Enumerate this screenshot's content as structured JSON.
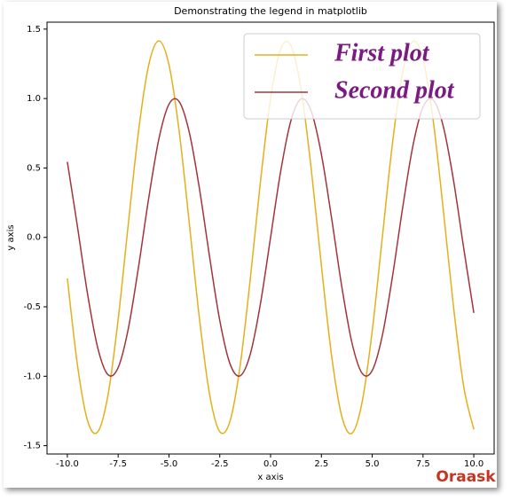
{
  "chart_data": {
    "type": "line",
    "title": "Demonstrating the legend in matplotlib",
    "xlabel": "x axis",
    "ylabel": "y axis",
    "x": [
      -10,
      -9.5,
      -9,
      -8.5,
      -8,
      -7.5,
      -7,
      -6.5,
      -6,
      -5.5,
      -5,
      -4.5,
      -4,
      -3.5,
      -3,
      -2.5,
      -2,
      -1.5,
      -1,
      -0.5,
      0,
      0.5,
      1,
      1.5,
      2,
      2.5,
      3,
      3.5,
      4,
      4.5,
      5,
      5.5,
      6,
      6.5,
      7,
      7.5,
      8,
      8.5,
      9,
      9.5,
      10
    ],
    "series": [
      {
        "name": "First plot",
        "color": "#e3b01c",
        "values": [
          -0.295,
          -0.922,
          -1.323,
          -1.4,
          -1.135,
          -0.591,
          0.097,
          0.762,
          1.239,
          1.415,
          1.243,
          0.767,
          0.103,
          -0.585,
          -1.131,
          -1.399,
          -1.325,
          -0.926,
          -0.301,
          0.399,
          1,
          1.357,
          1.381,
          1.068,
          0.493,
          -0.203,
          -0.849,
          -1.287,
          -1.411,
          -1.189,
          -0.675,
          0.003,
          0.681,
          1.192,
          1.411,
          1.285,
          0.843,
          0.196,
          -0.499,
          -1.072,
          -1.383
        ]
      },
      {
        "name": "Second plot",
        "color": "#a3343c",
        "values": [
          0.544,
          0.075,
          -0.412,
          -0.798,
          -0.989,
          -0.938,
          -0.657,
          -0.215,
          0.279,
          0.706,
          0.959,
          0.978,
          0.757,
          0.351,
          -0.141,
          -0.598,
          -0.909,
          -0.997,
          -0.841,
          -0.479,
          0,
          0.479,
          0.841,
          0.997,
          0.909,
          0.598,
          0.141,
          -0.351,
          -0.757,
          -0.978,
          -0.959,
          -0.706,
          -0.279,
          0.215,
          0.657,
          0.938,
          0.989,
          0.798,
          0.412,
          -0.075,
          -0.544
        ]
      }
    ],
    "xlim": [
      -11,
      11
    ],
    "ylim": [
      -1.56,
      1.55
    ],
    "xticks": [
      {
        "value": -10,
        "label": "-10.0"
      },
      {
        "value": -7.5,
        "label": "-7.5"
      },
      {
        "value": -5,
        "label": "-5.0"
      },
      {
        "value": -2.5,
        "label": "-2.5"
      },
      {
        "value": 0,
        "label": "0.0"
      },
      {
        "value": 2.5,
        "label": "2.5"
      },
      {
        "value": 5,
        "label": "5.0"
      },
      {
        "value": 7.5,
        "label": "7.5"
      },
      {
        "value": 10,
        "label": "10.0"
      }
    ],
    "yticks": [
      {
        "value": -1.5,
        "label": "-1.5"
      },
      {
        "value": -1,
        "label": "-1.0"
      },
      {
        "value": -0.5,
        "label": "-0.5"
      },
      {
        "value": 0,
        "label": "0.0"
      },
      {
        "value": 0.5,
        "label": "0.5"
      },
      {
        "value": 1,
        "label": "1.0"
      },
      {
        "value": 1.5,
        "label": "1.5"
      }
    ],
    "legend": "upper right",
    "legend_text_color": "#7a1a82",
    "grid": false,
    "watermark": "Oraask"
  }
}
